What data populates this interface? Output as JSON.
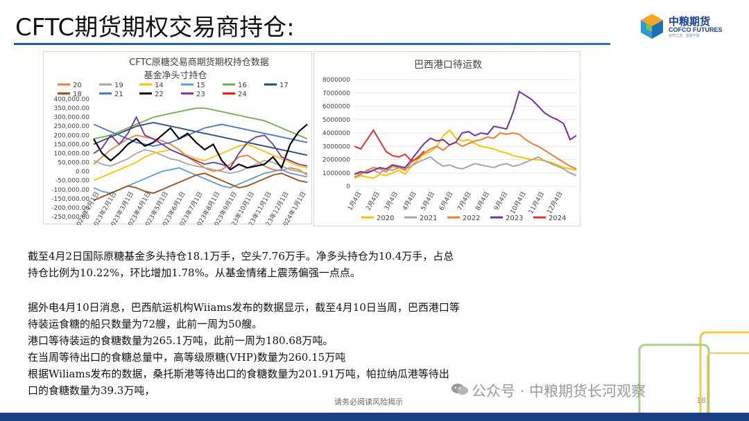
{
  "slide": {
    "title": "CFTC期货期权交易商持仓:",
    "logo_cn": "中粮期货",
    "logo_en": "COFCO FUTURES",
    "logo_tag": "自然之选 · 善建不拔",
    "footer_note": "请务必阅读风险揭示",
    "page_number": "18",
    "watermark": "公众号 · 中粮期货长河观察",
    "colors": {
      "title_rule": "#1f5aa6",
      "bottom_bar": "#1b3f83"
    }
  },
  "paragraphs": [
    "截至4月2日国际原糖基金多头持仓18.1万手，空头7.76万手。净多头持仓为10.4万手，占总",
    "持仓比例为10.22%，环比增加1.78%。从基金情绪上震荡偏强一点点。",
    "",
    "据外电4月10日消息，巴西航运机构Wiiams发布的数据显示，截至4月10日当周，巴西港口等",
    "待装运食糖的船只数量为72艘，此前一周为50艘。",
    "港口等待装运的食糖数量为265.1万吨，此前一周为180.68万吨。",
    "在当周等待出口的食糖总量中，高等级原糖(VHP)数量为260.15万吨",
    "根据Wiliams发布的数据，桑托斯港等待出口的食糖数量为201.91万吨，帕拉纳瓜港等待出",
    "口的食糖数量为39.3万吨，"
  ],
  "chart_data": [
    {
      "type": "line",
      "title": "CFTC原糖交易商期货期权持仓数据",
      "subtitle": "基金净头寸持仓",
      "legend_position": "top",
      "y_ticks": [
        "400,000.00",
        "350,000.00",
        "300,000.00",
        "250,000.00",
        "200,000.00",
        "150,000.00",
        "100,000.00",
        "50,000.00",
        "0.00",
        "-50,000.00",
        "-100,000.00",
        "-150,000.00",
        "-200,000.00",
        "-250,000.00"
      ],
      "ylim": [
        -250000,
        400000
      ],
      "x_ticks": [
        "2023年1月1日",
        "2023年2月1日",
        "2023年3月1日",
        "2023年4月1日",
        "2023年5月1日",
        "2023年6月1日",
        "2023年7月1日",
        "2023年8月1日",
        "2023年9月1日",
        "2023年10月1日",
        "2023年11月1日",
        "2023年12月1日",
        "2024年1月1日"
      ],
      "series": [
        {
          "name": "20",
          "color": "#ed7d31",
          "values": [
            40000,
            80000,
            120000,
            150000,
            180000,
            200000,
            190000,
            180000,
            170000,
            150000,
            120000,
            80000,
            50000,
            20000,
            0,
            10000,
            40000,
            80000,
            90000,
            60000,
            30000,
            10000,
            5000,
            20000,
            10000,
            -20000
          ]
        },
        {
          "name": "19",
          "color": "#a5a5a5",
          "values": [
            60000,
            40000,
            30000,
            50000,
            70000,
            100000,
            120000,
            110000,
            90000,
            70000,
            60000,
            40000,
            30000,
            20000,
            10000,
            0,
            -10000,
            0,
            20000,
            40000,
            60000,
            50000,
            30000,
            10000,
            0,
            -10000
          ]
        },
        {
          "name": "14",
          "color": "#ffc000",
          "values": [
            -50000,
            -30000,
            -10000,
            10000,
            30000,
            50000,
            80000,
            100000,
            110000,
            120000,
            100000,
            90000,
            70000,
            60000,
            80000,
            100000,
            120000,
            140000,
            150000,
            130000,
            110000,
            90000,
            70000,
            50000,
            30000,
            20000
          ]
        },
        {
          "name": "15",
          "color": "#5b9bd5",
          "values": [
            -90000,
            -110000,
            -120000,
            -100000,
            -80000,
            -60000,
            -40000,
            -20000,
            0,
            10000,
            20000,
            0,
            -20000,
            -40000,
            -60000,
            -80000,
            -90000,
            -70000,
            -50000,
            -30000,
            -10000,
            0,
            10000,
            -10000,
            -20000,
            -30000
          ]
        },
        {
          "name": "16",
          "color": "#70ad47",
          "values": [
            180000,
            190000,
            200000,
            220000,
            240000,
            260000,
            280000,
            300000,
            310000,
            320000,
            330000,
            340000,
            350000,
            350000,
            340000,
            330000,
            320000,
            310000,
            300000,
            290000,
            280000,
            260000,
            240000,
            220000,
            200000,
            180000
          ]
        },
        {
          "name": "17",
          "color": "#264478",
          "values": [
            150000,
            170000,
            190000,
            210000,
            230000,
            250000,
            260000,
            270000,
            260000,
            250000,
            240000,
            230000,
            220000,
            210000,
            200000,
            190000,
            180000,
            170000,
            160000,
            150000,
            140000,
            130000,
            120000,
            110000,
            100000,
            90000
          ]
        },
        {
          "name": "18",
          "color": "#9e480e",
          "values": [
            -160000,
            -140000,
            -120000,
            -100000,
            -80000,
            -90000,
            -110000,
            -120000,
            -100000,
            -80000,
            -60000,
            -40000,
            -20000,
            -10000,
            -30000,
            -50000,
            -70000,
            -90000,
            -80000,
            -60000,
            -40000,
            -20000,
            -10000,
            -30000,
            -50000,
            -60000
          ]
        },
        {
          "name": "21",
          "color": "#4472c4",
          "values": [
            260000,
            240000,
            220000,
            200000,
            180000,
            160000,
            150000,
            140000,
            150000,
            160000,
            180000,
            200000,
            220000,
            240000,
            250000,
            260000,
            250000,
            240000,
            230000,
            220000,
            210000,
            200000,
            190000,
            180000,
            170000,
            160000
          ]
        },
        {
          "name": "22",
          "color": "#000000",
          "values": [
            180000,
            100000,
            60000,
            100000,
            150000,
            180000,
            140000,
            160000,
            200000,
            240000,
            180000,
            210000,
            160000,
            120000,
            150000,
            60000,
            10000,
            40000,
            20000,
            30000,
            40000,
            80000,
            20000,
            150000,
            220000,
            260000
          ]
        },
        {
          "name": "23",
          "color": "#7030a0",
          "values": [
            100000,
            130000,
            200000,
            150000,
            210000,
            300000,
            200000,
            180000,
            150000,
            120000,
            100000,
            80000,
            60000,
            40000,
            50000,
            40000,
            20000,
            100000,
            160000,
            190000,
            200000,
            150000,
            80000,
            60000,
            40000,
            30000
          ]
        },
        {
          "name": "24",
          "color": "#ff0000",
          "values": []
        }
      ]
    },
    {
      "type": "line",
      "title": "巴西港口待运数",
      "legend_position": "bottom",
      "y_ticks": [
        "8000000",
        "7000000",
        "6000000",
        "5000000",
        "4000000",
        "3000000",
        "2000000",
        "1000000",
        "0"
      ],
      "ylim": [
        0,
        8000000
      ],
      "x_ticks": [
        "1月4日",
        "2月4日",
        "3月4日",
        "4月4日",
        "5月4日",
        "6月4日",
        "7月4日",
        "8月4日",
        "9月4日",
        "10月4日",
        "11月4日",
        "12月4日"
      ],
      "series": [
        {
          "name": "2020",
          "color": "#ffc000",
          "values": [
            600000,
            800000,
            700000,
            600000,
            900000,
            800000,
            1000000,
            1200000,
            900000,
            1500000,
            2000000,
            2400000,
            2600000,
            3000000,
            3800000,
            4200000,
            3600000,
            3400000,
            3500000,
            3200000,
            3000000,
            2900000,
            2800000,
            2600000,
            2500000,
            2300000,
            2200000,
            2100000,
            2000000,
            2000000,
            1900000,
            1800000,
            1600000,
            1400000,
            1300000,
            1200000
          ]
        },
        {
          "name": "2021",
          "color": "#a5a5a5",
          "values": [
            900000,
            1000000,
            1100000,
            1200000,
            1000000,
            1300000,
            1200000,
            1400000,
            1300000,
            1500000,
            1800000,
            2000000,
            2200000,
            1800000,
            1500000,
            1600000,
            1400000,
            1300000,
            1500000,
            1700000,
            1600000,
            1500000,
            1400000,
            1600000,
            1700000,
            1500000,
            1600000,
            1800000,
            2000000,
            2200000,
            1900000,
            1700000,
            1500000,
            1300000,
            1000000,
            800000
          ]
        },
        {
          "name": "2022",
          "color": "#ed7d31",
          "values": [
            700000,
            900000,
            1200000,
            1400000,
            1300000,
            1100000,
            1500000,
            1400000,
            1200000,
            1800000,
            2200000,
            2500000,
            2800000,
            3000000,
            2700000,
            3100000,
            3300000,
            3000000,
            3200000,
            3400000,
            3500000,
            3700000,
            3600000,
            4000000,
            3900000,
            4000000,
            3900000,
            3500000,
            3200000,
            3000000,
            2700000,
            2400000,
            2100000,
            1800000,
            1500000,
            1300000
          ]
        },
        {
          "name": "2023",
          "color": "#7030a0",
          "values": [
            900000,
            1100000,
            1000000,
            1200000,
            1400000,
            1300000,
            1600000,
            1500000,
            1400000,
            2000000,
            2600000,
            3200000,
            3600000,
            3400000,
            3500000,
            3100000,
            3300000,
            4000000,
            4100000,
            3800000,
            4000000,
            3900000,
            4500000,
            4400000,
            4300000,
            5500000,
            7100000,
            6800000,
            6500000,
            6000000,
            5500000,
            5200000,
            5000000,
            4700000,
            3500000,
            3800000
          ]
        },
        {
          "name": "2024",
          "color": "#e03030",
          "values": [
            3000000,
            2800000,
            3500000,
            4200000,
            3400000,
            2600000,
            2300000,
            2200000,
            2400000,
            1900000,
            2100000,
            2650000
          ]
        }
      ]
    }
  ]
}
